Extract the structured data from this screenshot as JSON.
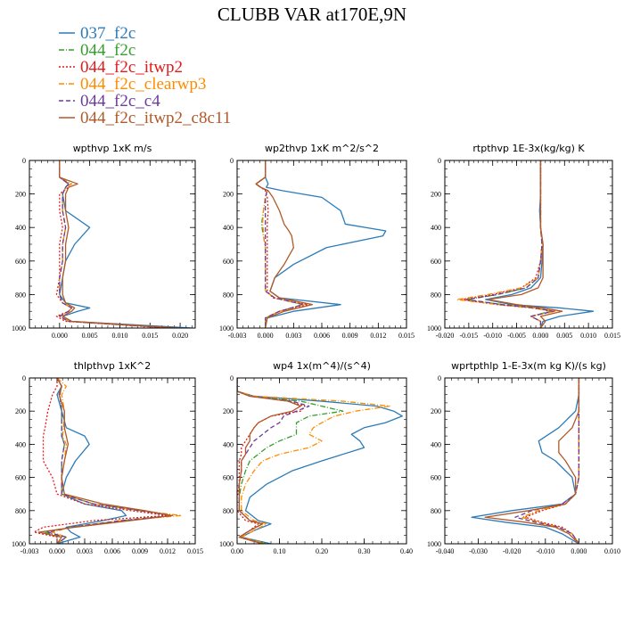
{
  "title": "CLUBB VAR at170E,9N",
  "legend": [
    {
      "label": "037_f2c",
      "color": "#2b7bb9",
      "dash": ""
    },
    {
      "label": "044_f2c",
      "color": "#33a02c",
      "dash": "6,2,1,2"
    },
    {
      "label": "044_f2c_itwp2",
      "color": "#e31a1c",
      "dash": "2,2"
    },
    {
      "label": "044_f2c_clearwp3",
      "color": "#ff8c00",
      "dash": "6,2,1,2"
    },
    {
      "label": "044_f2c_c4",
      "color": "#6a3d9a",
      "dash": "5,3"
    },
    {
      "label": "044_f2c_itwp2_c8c11",
      "color": "#b15928",
      "dash": ""
    }
  ],
  "chart_data": [
    {
      "type": "line",
      "title": "wpthvp   1xK m/s",
      "xlim": [
        -0.005,
        0.0225
      ],
      "xticks": [
        0.0,
        0.005,
        0.01,
        0.015,
        0.02
      ],
      "xtick_labels": [
        "0.000",
        "0.005",
        "0.010",
        "0.015",
        "0.020"
      ],
      "ylim": [
        0,
        1000
      ],
      "yticks": [
        0,
        200,
        400,
        600,
        800,
        1000
      ],
      "y": [
        0,
        100,
        140,
        160,
        200,
        300,
        400,
        500,
        600,
        700,
        800,
        850,
        880,
        900,
        930,
        960,
        1000
      ],
      "series": [
        {
          "values": [
            0.0,
            0.0,
            0.0015,
            0.001,
            0.0005,
            0.001,
            0.005,
            0.0025,
            0.001,
            0.0005,
            0.0,
            0.001,
            0.005,
            0.003,
            0.0005,
            0.002,
            0.022
          ]
        },
        {
          "values": [
            0.0,
            0.0,
            0.002,
            0.001,
            0.0005,
            0.0005,
            0.001,
            0.0005,
            0.0005,
            0.0,
            0.0,
            0.0005,
            0.002,
            0.0015,
            0.0,
            0.0015,
            0.019
          ]
        },
        {
          "values": [
            0.0,
            0.0,
            0.0015,
            0.0015,
            0.0,
            0.0,
            0.0005,
            0.0,
            0.0,
            0.0,
            -0.0005,
            0.0005,
            0.002,
            0.0015,
            -0.0005,
            0.001,
            0.018
          ]
        },
        {
          "values": [
            0.0,
            0.0,
            0.002,
            0.001,
            0.0005,
            0.0005,
            0.001,
            0.0005,
            0.0005,
            0.0,
            0.0,
            0.0005,
            0.002,
            0.0015,
            0.0,
            0.0015,
            0.019
          ]
        },
        {
          "values": [
            0.0,
            0.0,
            0.0015,
            0.001,
            0.0005,
            0.0005,
            0.001,
            0.0005,
            0.0005,
            0.0,
            0.0,
            0.0005,
            0.002,
            0.0015,
            0.0,
            0.0015,
            0.019
          ]
        },
        {
          "values": [
            0.0,
            0.0,
            0.003,
            0.0015,
            0.001,
            0.001,
            0.0015,
            0.001,
            0.001,
            0.0005,
            0.0005,
            0.001,
            0.0025,
            0.002,
            0.0005,
            0.002,
            0.02
          ]
        }
      ]
    },
    {
      "type": "line",
      "title": "wp2thvp   1xK m^2/s^2",
      "xlim": [
        -0.003,
        0.015
      ],
      "xticks": [
        -0.003,
        0.0,
        0.003,
        0.006,
        0.009,
        0.012,
        0.015
      ],
      "xtick_labels": [
        "-0.003",
        "0.000",
        "0.003",
        "0.006",
        "0.009",
        "0.012",
        "0.015"
      ],
      "ylim": [
        0,
        1000
      ],
      "yticks": [
        0,
        200,
        400,
        600,
        800,
        1000
      ],
      "y": [
        0,
        100,
        140,
        160,
        180,
        220,
        300,
        380,
        420,
        450,
        520,
        620,
        700,
        780,
        820,
        860,
        900,
        940,
        1000
      ],
      "series": [
        {
          "values": [
            0.0,
            0.0,
            0.0003,
            0.0001,
            0.0018,
            0.006,
            0.008,
            0.0085,
            0.0128,
            0.0125,
            0.0065,
            0.003,
            0.001,
            0.0005,
            0.0015,
            0.008,
            0.003,
            0.0002,
            0.0
          ]
        },
        {
          "values": [
            0.0,
            0.0,
            -0.001,
            -0.0005,
            0.0002,
            0.0,
            -0.0002,
            -0.0004,
            -0.0003,
            -0.0002,
            0.0,
            0.0,
            0.0,
            0.0,
            0.001,
            0.004,
            0.0015,
            0.0,
            0.0
          ]
        },
        {
          "values": [
            0.0,
            0.0,
            -0.001,
            -0.0005,
            0.0,
            0.0002,
            0.0003,
            0.0002,
            0.0002,
            0.0002,
            0.0002,
            0.0002,
            0.0002,
            0.0002,
            0.0008,
            0.0045,
            0.0015,
            0.0,
            0.0
          ]
        },
        {
          "values": [
            0.0,
            0.0,
            -0.001,
            -0.0005,
            0.0002,
            0.0,
            -0.0002,
            -0.0003,
            -0.0002,
            -0.0002,
            0.0,
            0.0,
            0.0,
            0.0,
            0.001,
            0.0042,
            0.0015,
            0.0,
            0.0
          ]
        },
        {
          "values": [
            0.0,
            0.0,
            -0.001,
            -0.0005,
            0.0002,
            0.0,
            0.0,
            0.0,
            0.0,
            0.0,
            0.0,
            0.0,
            0.0,
            0.0,
            0.001,
            0.004,
            0.0015,
            0.0,
            0.0
          ]
        },
        {
          "values": [
            0.0,
            0.0,
            -0.001,
            -0.0005,
            0.0003,
            0.0008,
            0.0015,
            0.002,
            0.0025,
            0.0028,
            0.003,
            0.002,
            0.001,
            0.0005,
            0.0015,
            0.005,
            0.002,
            0.0002,
            0.0
          ]
        }
      ]
    },
    {
      "type": "line",
      "title": "rtpthvp   1E-3x(kg/kg) K",
      "xlim": [
        -0.02,
        0.015
      ],
      "xticks": [
        -0.02,
        -0.015,
        -0.01,
        -0.005,
        0.0,
        0.005,
        0.01,
        0.015
      ],
      "xtick_labels": [
        "-0.020",
        "-0.015",
        "-0.010",
        "-0.005",
        "0.000",
        "0.005",
        "0.010",
        "0.015"
      ],
      "ylim": [
        0,
        1000
      ],
      "yticks": [
        0,
        200,
        400,
        600,
        800,
        1000
      ],
      "y": [
        0,
        100,
        200,
        300,
        400,
        500,
        600,
        700,
        760,
        800,
        830,
        860,
        880,
        900,
        930,
        960,
        1000
      ],
      "series": [
        {
          "values": [
            0.0,
            0.0,
            0.0,
            -0.0002,
            0.0,
            0.0005,
            0.0003,
            0.0,
            -0.002,
            -0.006,
            -0.0115,
            -0.006,
            0.004,
            0.011,
            0.004,
            0.0005,
            0.0
          ]
        },
        {
          "values": [
            0.0,
            0.0,
            0.0,
            0.0,
            0.0,
            0.0003,
            0.0,
            -0.0005,
            -0.003,
            -0.009,
            -0.0155,
            -0.008,
            -0.001,
            0.002,
            -0.002,
            0.0,
            0.0
          ]
        },
        {
          "values": [
            0.0,
            0.0,
            0.0,
            0.0,
            0.0,
            0.0003,
            0.0,
            -0.001,
            -0.004,
            -0.01,
            -0.0165,
            -0.009,
            -0.002,
            0.003,
            -0.002,
            0.0,
            0.0
          ]
        },
        {
          "values": [
            0.0,
            0.0,
            0.0,
            0.0,
            0.0,
            0.0003,
            0.0,
            -0.0005,
            -0.004,
            -0.011,
            -0.0175,
            -0.009,
            -0.002,
            0.003,
            -0.002,
            0.0,
            0.0
          ]
        },
        {
          "values": [
            0.0,
            0.0,
            0.0,
            0.0,
            0.0,
            0.0003,
            0.0,
            -0.0005,
            -0.003,
            -0.009,
            -0.0155,
            -0.008,
            -0.001,
            0.0025,
            -0.002,
            0.0,
            0.0
          ]
        },
        {
          "values": [
            0.0,
            0.0,
            0.0,
            0.0,
            0.0,
            0.0005,
            0.0005,
            0.0005,
            -0.0005,
            -0.004,
            -0.011,
            -0.005,
            0.0005,
            0.0045,
            0.0,
            0.001,
            0.0
          ]
        }
      ]
    },
    {
      "type": "line",
      "title": "thlpthvp   1xK^2",
      "xlim": [
        -0.003,
        0.015
      ],
      "xticks": [
        -0.003,
        0.0,
        0.003,
        0.006,
        0.009,
        0.012,
        0.015
      ],
      "xtick_labels": [
        "-0.003",
        "0.000",
        "0.003",
        "0.006",
        "0.009",
        "0.012",
        "0.015"
      ],
      "ylim": [
        0,
        1000
      ],
      "yticks": [
        0,
        200,
        400,
        600,
        800,
        1000
      ],
      "y": [
        0,
        50,
        100,
        200,
        300,
        350,
        400,
        500,
        600,
        700,
        760,
        800,
        830,
        860,
        900,
        930,
        960,
        1000
      ],
      "series": [
        {
          "values": [
            0.0,
            0.0005,
            0.0,
            0.0005,
            0.001,
            0.003,
            0.0035,
            0.002,
            0.001,
            0.0005,
            0.003,
            0.007,
            0.0075,
            0.005,
            0.001,
            0.0015,
            0.0025,
            0.0
          ]
        },
        {
          "values": [
            0.0,
            0.0005,
            0.0003,
            0.0005,
            0.0005,
            0.0005,
            0.0008,
            0.0005,
            0.0005,
            0.0005,
            0.004,
            0.009,
            0.0125,
            0.007,
            0.0015,
            -0.0015,
            0.001,
            0.0
          ]
        },
        {
          "values": [
            0.0,
            0.0,
            -0.0005,
            -0.001,
            -0.0013,
            -0.0015,
            -0.0015,
            -0.0015,
            -0.0005,
            0.0,
            0.003,
            0.008,
            0.012,
            0.004,
            -0.0015,
            -0.0025,
            0.0,
            0.0
          ]
        },
        {
          "values": [
            0.0,
            0.001,
            0.0005,
            0.0008,
            0.0007,
            0.0006,
            0.001,
            0.0008,
            0.0005,
            0.0005,
            0.004,
            0.009,
            0.0135,
            0.007,
            0.0015,
            -0.0005,
            0.001,
            0.0
          ]
        },
        {
          "values": [
            0.0,
            0.0005,
            0.0003,
            0.0005,
            0.0005,
            0.0005,
            0.0008,
            0.0005,
            0.0005,
            0.0005,
            0.004,
            0.009,
            0.0125,
            0.007,
            0.0015,
            -0.001,
            0.001,
            0.0
          ]
        },
        {
          "values": [
            0.0,
            0.0005,
            0.0002,
            0.0008,
            0.0008,
            0.001,
            0.0012,
            0.0008,
            0.0005,
            0.0008,
            0.005,
            0.0095,
            0.0125,
            0.008,
            0.002,
            -0.002,
            0.0005,
            0.0
          ]
        }
      ]
    },
    {
      "type": "line",
      "title": "wp4   1x(m^4)/(s^4)",
      "xlim": [
        0.0,
        0.4
      ],
      "xticks": [
        0.0,
        0.1,
        0.2,
        0.3,
        0.4
      ],
      "xtick_labels": [
        "0.00",
        "0.10",
        "0.20",
        "0.30",
        "0.40"
      ],
      "ylim": [
        0,
        1000
      ],
      "yticks": [
        0,
        200,
        400,
        600,
        800,
        1000
      ],
      "y": [
        0,
        80,
        110,
        140,
        170,
        200,
        230,
        270,
        300,
        340,
        380,
        420,
        460,
        500,
        560,
        640,
        720,
        800,
        860,
        880,
        920,
        960,
        1000
      ],
      "series": [
        {
          "values": [
            0.0,
            0.0,
            0.04,
            0.2,
            0.33,
            0.37,
            0.39,
            0.35,
            0.3,
            0.27,
            0.29,
            0.3,
            0.25,
            0.2,
            0.13,
            0.07,
            0.03,
            0.02,
            0.05,
            0.08,
            0.04,
            0.01,
            0.08
          ]
        },
        {
          "values": [
            0.0,
            0.0,
            0.03,
            0.15,
            0.2,
            0.25,
            0.17,
            0.14,
            0.14,
            0.14,
            0.1,
            0.07,
            0.05,
            0.03,
            0.02,
            0.01,
            0.005,
            0.005,
            0.03,
            0.06,
            0.03,
            0.005,
            0.07
          ]
        },
        {
          "values": [
            0.0,
            0.0,
            0.03,
            0.12,
            0.16,
            0.15,
            0.08,
            0.05,
            0.04,
            0.03,
            0.02,
            0.01,
            0.01,
            0.005,
            0.005,
            0.005,
            0.0,
            0.0,
            0.02,
            0.05,
            0.03,
            0.005,
            0.06
          ]
        },
        {
          "values": [
            0.0,
            0.0,
            0.04,
            0.25,
            0.36,
            0.28,
            0.23,
            0.2,
            0.18,
            0.17,
            0.2,
            0.17,
            0.1,
            0.06,
            0.04,
            0.02,
            0.01,
            0.01,
            0.04,
            0.07,
            0.04,
            0.01,
            0.07
          ]
        },
        {
          "values": [
            0.0,
            0.0,
            0.03,
            0.13,
            0.17,
            0.14,
            0.11,
            0.1,
            0.08,
            0.06,
            0.04,
            0.03,
            0.02,
            0.01,
            0.01,
            0.005,
            0.005,
            0.005,
            0.03,
            0.06,
            0.03,
            0.005,
            0.06
          ]
        },
        {
          "values": [
            0.0,
            0.0,
            0.03,
            0.12,
            0.15,
            0.13,
            0.08,
            0.05,
            0.04,
            0.03,
            0.03,
            0.02,
            0.02,
            0.01,
            0.01,
            0.005,
            0.005,
            0.005,
            0.03,
            0.06,
            0.03,
            0.005,
            0.06
          ]
        }
      ]
    },
    {
      "type": "line",
      "title": "wprtpthlp   1-E-3x(m kg K)/(s kg)",
      "xlim": [
        -0.04,
        0.01
      ],
      "xticks": [
        -0.04,
        -0.03,
        -0.02,
        -0.01,
        0.0,
        0.01
      ],
      "xtick_labels": [
        "-0.040",
        "-0.030",
        "-0.020",
        "-0.010",
        "0.000",
        "0.010"
      ],
      "ylim": [
        0,
        1000
      ],
      "yticks": [
        0,
        200,
        400,
        600,
        800,
        1000
      ],
      "y": [
        0,
        100,
        200,
        300,
        380,
        450,
        500,
        600,
        700,
        760,
        800,
        840,
        870,
        900,
        940,
        1000
      ],
      "series": [
        {
          "values": [
            0.0,
            0.0,
            -0.001,
            -0.006,
            -0.012,
            -0.011,
            -0.007,
            -0.002,
            -0.001,
            -0.005,
            -0.02,
            -0.032,
            -0.022,
            -0.01,
            -0.005,
            0.0
          ]
        },
        {
          "values": [
            0.0,
            0.0,
            0.0,
            0.0,
            0.0,
            0.0,
            0.0,
            0.0,
            -0.001,
            -0.004,
            -0.012,
            -0.017,
            -0.012,
            -0.006,
            -0.002,
            0.0
          ]
        },
        {
          "values": [
            0.0,
            0.0,
            0.0,
            0.0,
            0.0,
            0.0,
            0.0,
            0.0,
            -0.001,
            -0.004,
            -0.011,
            -0.016,
            -0.011,
            -0.005,
            -0.002,
            0.0
          ]
        },
        {
          "values": [
            0.0,
            0.0,
            0.0,
            0.0,
            0.0,
            0.0,
            0.0,
            0.0,
            -0.001,
            -0.004,
            -0.012,
            -0.017,
            -0.012,
            -0.006,
            -0.002,
            0.0
          ]
        },
        {
          "values": [
            0.0,
            0.0,
            0.0,
            0.0,
            0.0,
            0.0,
            0.0,
            0.0,
            -0.001,
            -0.005,
            -0.014,
            -0.019,
            -0.013,
            -0.006,
            -0.002,
            0.0
          ]
        },
        {
          "values": [
            0.0,
            0.0,
            0.0,
            -0.002,
            -0.006,
            -0.006,
            -0.004,
            -0.001,
            -0.001,
            -0.004,
            -0.015,
            -0.028,
            -0.016,
            -0.007,
            -0.003,
            0.0
          ]
        }
      ]
    }
  ]
}
